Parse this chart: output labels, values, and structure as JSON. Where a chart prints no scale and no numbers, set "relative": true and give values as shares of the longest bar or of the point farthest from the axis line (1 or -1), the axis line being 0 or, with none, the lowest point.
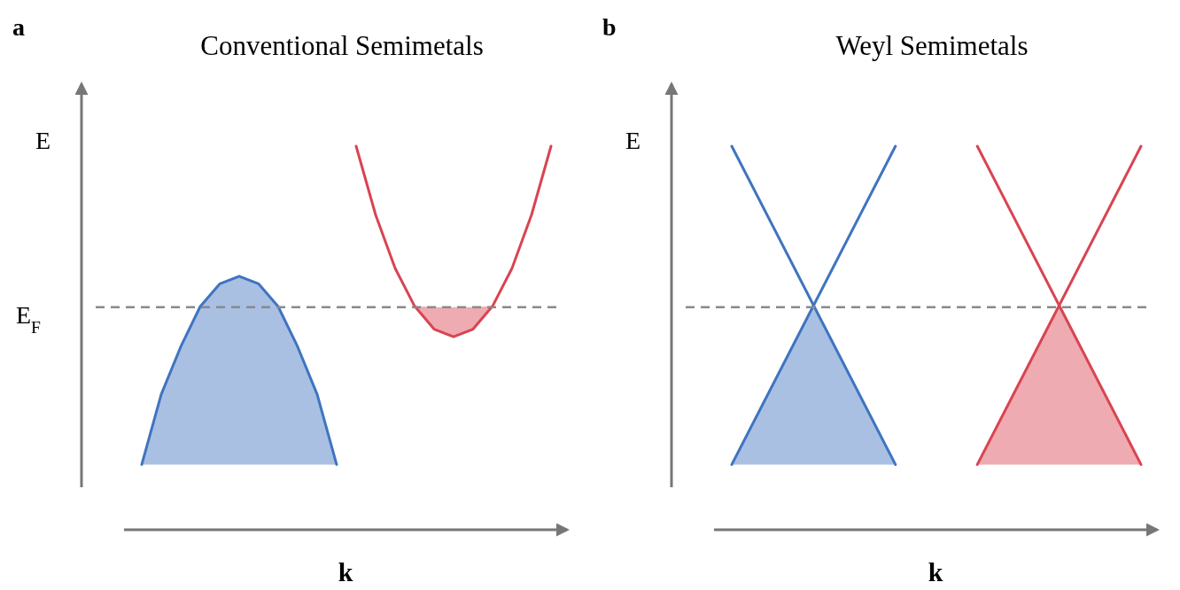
{
  "chart_data": [
    {
      "type": "line",
      "title": "Conventional Semimetals",
      "xlabel": "k",
      "ylabel": "E",
      "annotations": [
        "a"
      ],
      "relative": true,
      "grid": false,
      "line_style": "solid",
      "categories": [
        null,
        null,
        null,
        null,
        null,
        null,
        null,
        null,
        null,
        null,
        null,
        null,
        null,
        null,
        null,
        null,
        null,
        null,
        null,
        null,
        null,
        null
      ],
      "series": [
        {
          "color": "#3f74c0",
          "values": [
            0.17,
            0.353,
            0.477,
            0.582,
            0.641,
            0.661,
            0.641,
            0.582,
            0.477,
            0.353,
            0.17,
            null,
            null,
            null,
            null,
            null,
            null,
            null,
            null,
            null,
            null,
            null
          ],
          "lower": [
            0.17,
            0.17,
            0.17,
            0.17,
            0.17,
            0.17,
            0.17,
            0.17,
            0.17,
            0.17,
            0.17,
            null,
            null,
            null,
            null,
            null,
            null,
            null,
            null,
            null,
            null,
            null
          ],
          "upper": [
            0.17,
            0.353,
            0.477,
            0.582,
            0.641,
            0.661,
            0.641,
            0.582,
            0.477,
            0.353,
            0.17,
            null,
            null,
            null,
            null,
            null,
            null,
            null,
            null,
            null,
            null,
            null
          ]
        },
        {
          "color": "#d94452",
          "values": [
            null,
            null,
            null,
            null,
            null,
            null,
            null,
            null,
            null,
            null,
            null,
            1.0,
            0.821,
            0.682,
            0.583,
            0.523,
            0.503,
            0.523,
            0.583,
            0.682,
            0.821,
            1.0
          ],
          "lower": [
            null,
            null,
            null,
            null,
            null,
            null,
            null,
            null,
            null,
            null,
            null,
            null,
            null,
            null,
            0.583,
            0.523,
            0.503,
            0.523,
            0.583,
            null,
            null,
            null
          ],
          "upper": [
            null,
            null,
            null,
            null,
            null,
            null,
            null,
            null,
            null,
            null,
            null,
            null,
            null,
            null,
            0.583,
            0.58,
            0.58,
            0.58,
            0.583,
            null,
            null,
            null
          ]
        }
      ],
      "ref_lines": [
        {
          "axis": "y",
          "value": 0.58,
          "label": "E$_{F}$",
          "color": "#8a8a8a",
          "line_style": "dashed"
        }
      ]
    },
    {
      "type": "line",
      "title": "Weyl Semimetals",
      "xlabel": "k",
      "ylabel": "E",
      "annotations": [
        "b"
      ],
      "relative": true,
      "grid": false,
      "line_style": "solid",
      "categories": [
        null,
        null,
        null,
        null,
        null,
        null
      ],
      "series": [
        {
          "color": "#3f74c0",
          "values": [
            1.0,
            0.585,
            0.17,
            null,
            null,
            null
          ]
        },
        {
          "color": "#3f74c0",
          "values": [
            0.17,
            0.585,
            1.0,
            null,
            null,
            null
          ],
          "lower": [
            0.17,
            0.17,
            0.17,
            null,
            null,
            null
          ],
          "upper": [
            0.17,
            0.585,
            0.17,
            null,
            null,
            null
          ]
        },
        {
          "color": "#d94452",
          "values": [
            null,
            null,
            null,
            1.0,
            0.585,
            0.17
          ]
        },
        {
          "color": "#d94452",
          "values": [
            null,
            null,
            null,
            0.17,
            0.585,
            1.0
          ],
          "lower": [
            null,
            null,
            null,
            0.17,
            0.17,
            0.17
          ],
          "upper": [
            null,
            null,
            null,
            0.17,
            0.585,
            0.17
          ]
        }
      ],
      "ref_lines": [
        {
          "axis": "y",
          "value": 0.58,
          "color": "#8a8a8a",
          "line_style": "dashed"
        }
      ]
    }
  ]
}
